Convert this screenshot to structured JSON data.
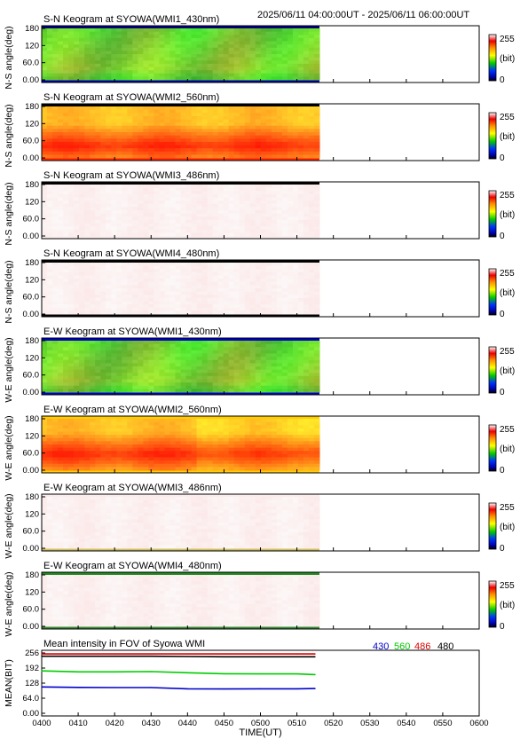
{
  "time_range_label": "2025/06/11 04:00:00UT - 2025/06/11 06:00:00UT",
  "x_ticks": [
    "0400",
    "0410",
    "0420",
    "0430",
    "0440",
    "0450",
    "0500",
    "0510",
    "0520",
    "0530",
    "0540",
    "0550",
    "0600"
  ],
  "x_label": "TIME(UT)",
  "colorbar": {
    "max": "255",
    "unit": "(bit)",
    "min": "0"
  },
  "panels": [
    {
      "title": "S-N Keogram at SYOWA(WMI1_430nm)",
      "ylabel": "N-S angle(deg)",
      "yticks": [
        "180",
        "120",
        "60.0",
        "0.00"
      ],
      "palette": "green",
      "edge_top": "#000080",
      "edge_bottom": "#0000aa"
    },
    {
      "title": "S-N Keogram at SYOWA(WMI2_560nm)",
      "ylabel": "N-S angle(deg)",
      "yticks": [
        "180",
        "120",
        "60.0",
        "0.00"
      ],
      "palette": "orange",
      "edge_top": "#000000",
      "edge_bottom": "#ff2200"
    },
    {
      "title": "S-N Keogram at SYOWA(WMI3_486nm)",
      "ylabel": "N-S angle(deg)",
      "yticks": [
        "180",
        "120",
        "60.0",
        "0.00"
      ],
      "palette": "pink",
      "edge_top": "#000000",
      "edge_bottom": "#fbecec"
    },
    {
      "title": "S-N Keogram at SYOWA(WMI4_480nm)",
      "ylabel": "N-S angle(deg)",
      "yticks": [
        "180",
        "120",
        "60.0",
        "0.00"
      ],
      "palette": "pink",
      "edge_top": "#000000",
      "edge_bottom": "#000000"
    },
    {
      "title": "E-W Keogram at SYOWA(WMI1_430nm)",
      "ylabel": "W-E angle(deg)",
      "yticks": [
        "180",
        "120",
        "60.0",
        "0.00"
      ],
      "palette": "green",
      "edge_top": "#0000cc",
      "edge_bottom": "#0000cc"
    },
    {
      "title": "E-W Keogram at SYOWA(WMI2_560nm)",
      "ylabel": "W-E angle(deg)",
      "yticks": [
        "180",
        "120",
        "60.0",
        "0.00"
      ],
      "palette": "orange2",
      "edge_top": "#ffcc00",
      "edge_bottom": "#ffcc00"
    },
    {
      "title": "E-W Keogram at SYOWA(WMI3_486nm)",
      "ylabel": "W-E angle(deg)",
      "yticks": [
        "180",
        "120",
        "60.0",
        "0.00"
      ],
      "palette": "pink",
      "edge_top": "#fbecec",
      "edge_bottom": "#ccc060"
    },
    {
      "title": "E-W Keogram at SYOWA(WMI4_480nm)",
      "ylabel": "W-E angle(deg)",
      "yticks": [
        "180",
        "120",
        "60.0",
        "0.00"
      ],
      "palette": "pink",
      "edge_top": "#228822",
      "edge_bottom": "#338833"
    }
  ],
  "mean_panel": {
    "title": "Mean intensity in FOV of Syowa WMI",
    "ylabel": "MEAN(BIT)",
    "yticks": [
      "256",
      "192",
      "128",
      "64.0",
      "0.00"
    ],
    "legend": [
      {
        "label": "430",
        "color": "#0000cc"
      },
      {
        "label": "560",
        "color": "#00cc00"
      },
      {
        "label": "486",
        "color": "#dd0000"
      },
      {
        "label": "480",
        "color": "#000000"
      }
    ]
  },
  "chart_data": {
    "type": "line",
    "title": "Mean intensity in FOV of Syowa WMI",
    "xlabel": "TIME(UT)",
    "ylabel": "MEAN(BIT)",
    "ylim": [
      0,
      256
    ],
    "x": [
      "04:00",
      "04:10",
      "04:20",
      "04:30",
      "04:40",
      "04:50",
      "05:00",
      "05:10",
      "05:15"
    ],
    "series": [
      {
        "name": "430",
        "color": "#0000cc",
        "values": [
          112,
          110,
          109,
          109,
          104,
          103,
          104,
          104,
          105
        ]
      },
      {
        "name": "560",
        "color": "#00cc00",
        "values": [
          180,
          176,
          176,
          177,
          172,
          168,
          167,
          167,
          164
        ]
      },
      {
        "name": "486",
        "color": "#dd0000",
        "values": [
          252,
          252,
          252,
          252,
          252,
          252,
          252,
          252,
          252
        ]
      },
      {
        "name": "480",
        "color": "#000000",
        "values": [
          242,
          242,
          242,
          242,
          241,
          240,
          240,
          240,
          240
        ]
      }
    ]
  }
}
